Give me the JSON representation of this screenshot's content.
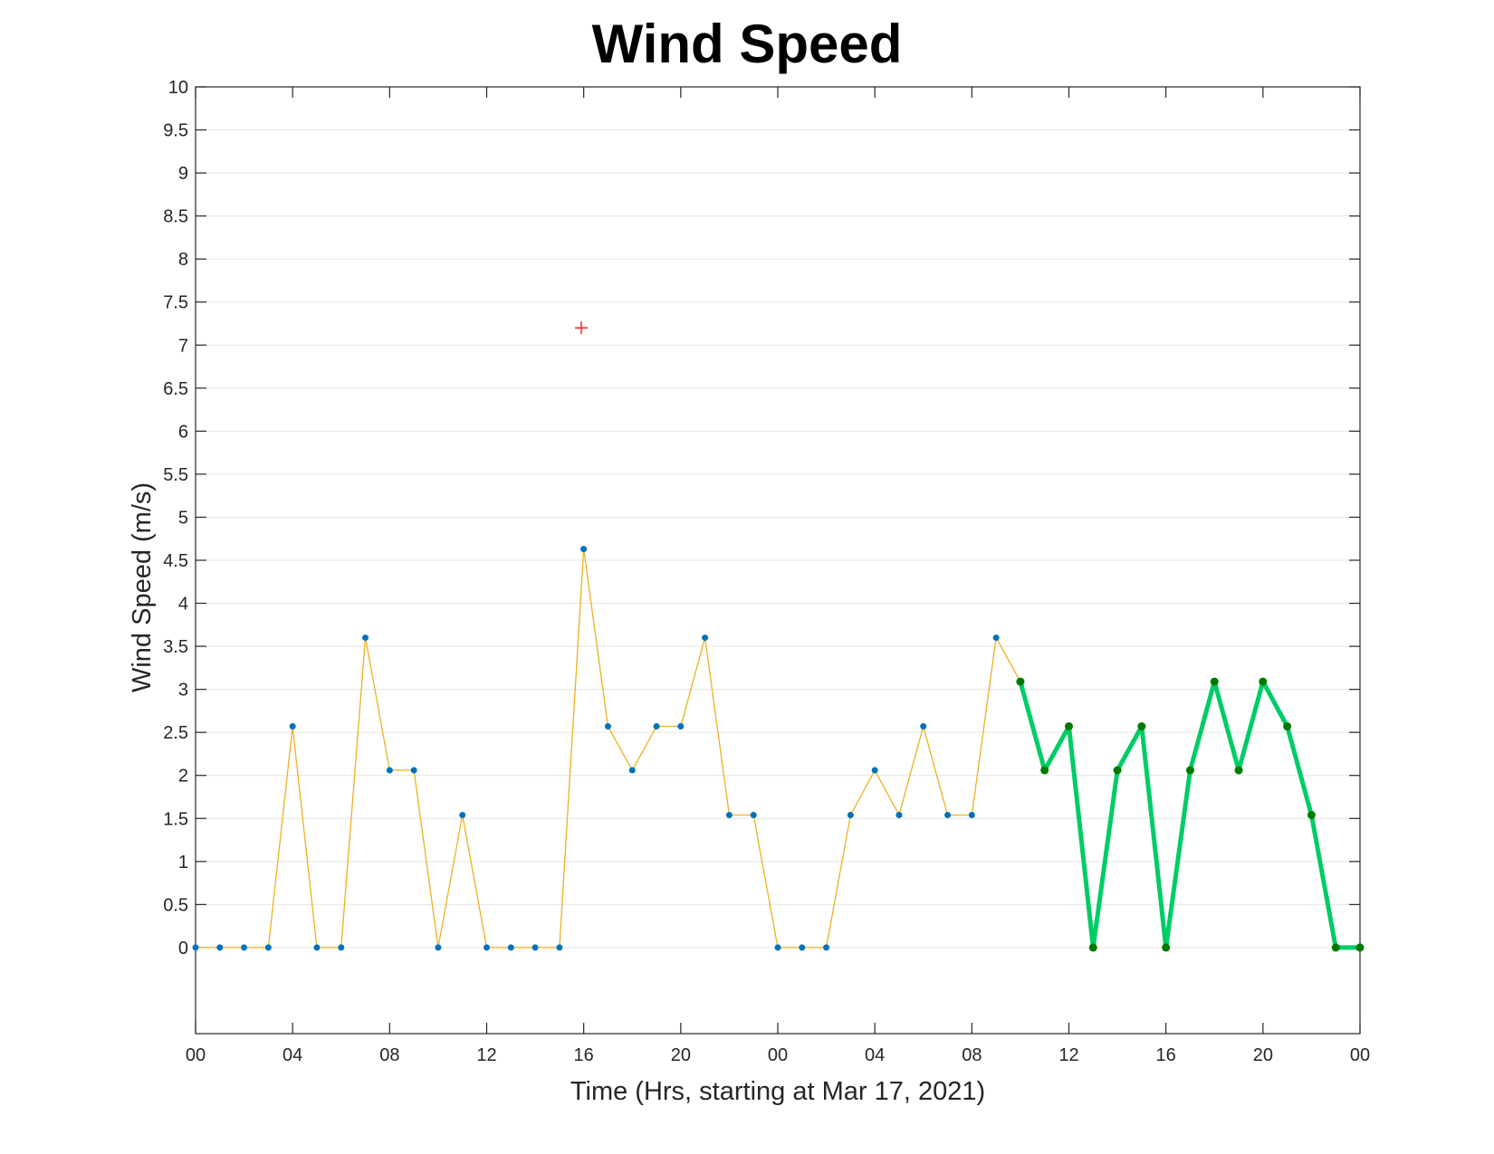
{
  "chart_data": {
    "type": "line",
    "title": "Wind Speed",
    "xlabel": "Time (Hrs, starting at Mar 17, 2021)",
    "ylabel": "Wind Speed (m/s)",
    "x_unit": "hours",
    "xlim": [
      0,
      48
    ],
    "ylim": [
      -1,
      10
    ],
    "y_ticks": [
      0,
      0.5,
      1,
      1.5,
      2,
      2.5,
      3,
      3.5,
      4,
      4.5,
      5,
      5.5,
      6,
      6.5,
      7,
      7.5,
      8,
      8.5,
      9,
      9.5,
      10
    ],
    "y_tick_labels": [
      "0",
      "0.5",
      "1",
      "1.5",
      "2",
      "2.5",
      "3",
      "3.5",
      "4",
      "4.5",
      "5",
      "5.5",
      "6",
      "6.5",
      "7",
      "7.5",
      "8",
      "8.5",
      "9",
      "9.5",
      "10"
    ],
    "x_ticks": [
      0,
      4,
      8,
      12,
      16,
      20,
      24,
      28,
      32,
      36,
      40,
      44,
      48
    ],
    "x_tick_labels": [
      "00",
      "04",
      "08",
      "12",
      "16",
      "20",
      "00",
      "04",
      "08",
      "12",
      "16",
      "20",
      "00"
    ],
    "grid": "horizontal",
    "series": [
      {
        "style": "thin-line-with-dots",
        "line_color": "#EDB120",
        "marker_color": "#0072BD",
        "x": [
          0,
          1,
          2,
          3,
          4,
          5,
          6,
          7,
          8,
          9,
          10,
          11,
          12,
          13,
          14,
          15,
          16,
          17,
          18,
          19,
          20,
          21,
          22,
          23,
          24,
          25,
          26,
          27,
          28,
          29,
          30,
          31,
          32,
          33,
          34
        ],
        "values": [
          0,
          0,
          0,
          0,
          2.57,
          0,
          0,
          3.6,
          2.06,
          2.06,
          0,
          1.54,
          0,
          0,
          0,
          0,
          4.63,
          2.57,
          2.06,
          2.57,
          2.57,
          3.6,
          1.54,
          1.54,
          0,
          0,
          0,
          1.54,
          2.06,
          1.54,
          2.57,
          1.54,
          1.54,
          3.6,
          3.09
        ]
      },
      {
        "style": "thick-line-with-dots",
        "line_color": "#00CC66",
        "marker_color": "#007A00",
        "x": [
          34,
          35,
          36,
          37,
          38,
          39,
          40,
          41,
          42,
          43,
          44,
          45,
          46,
          47,
          48
        ],
        "values": [
          3.09,
          2.06,
          2.57,
          0,
          2.06,
          2.57,
          0,
          2.06,
          3.09,
          2.06,
          3.09,
          2.57,
          1.54,
          0,
          0
        ]
      }
    ],
    "annotations": [
      {
        "type": "marker",
        "symbol": "+",
        "color": "#FF0000",
        "x": 15.9,
        "y": 7.2
      }
    ]
  }
}
